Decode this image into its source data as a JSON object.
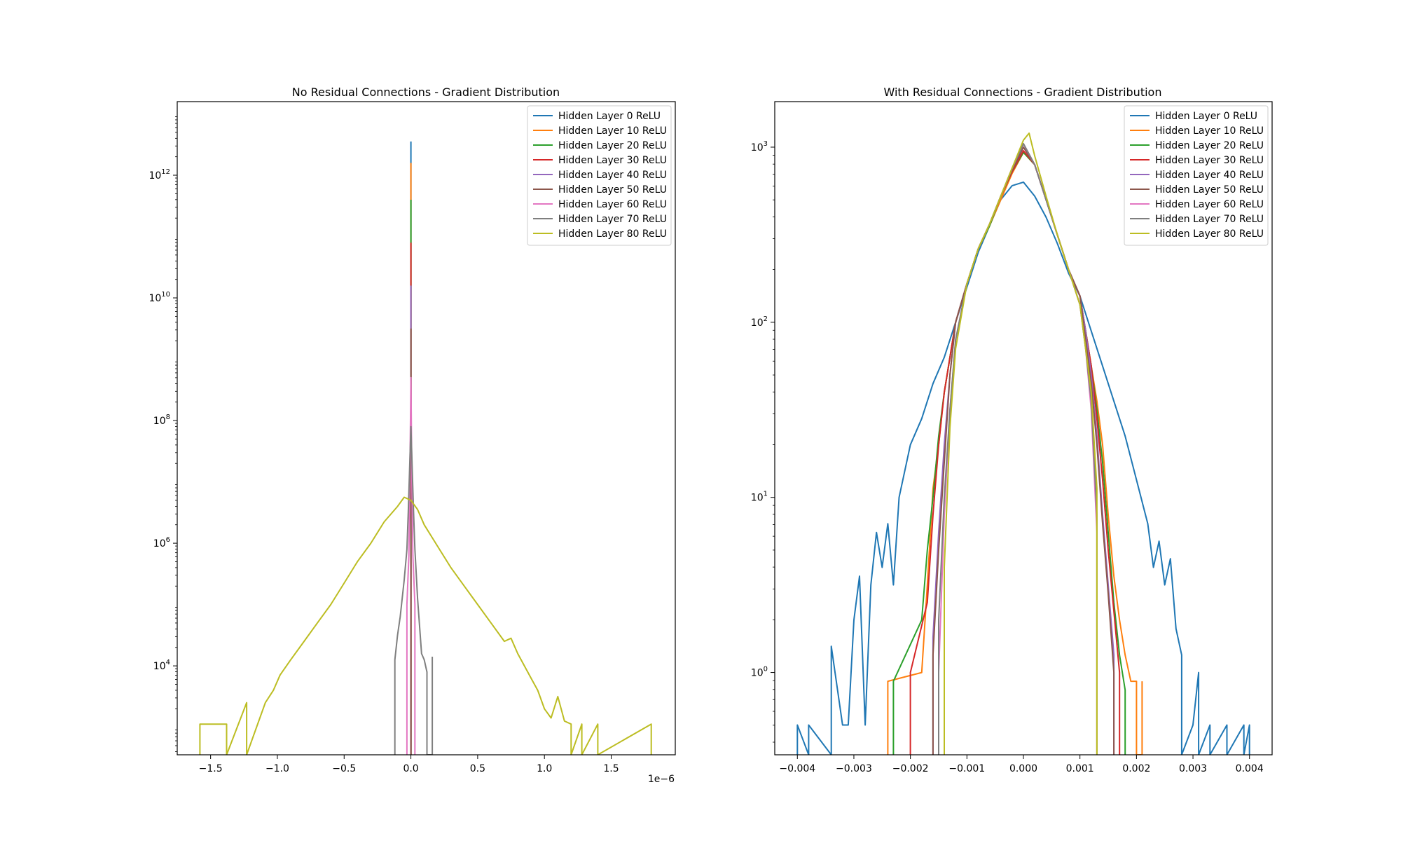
{
  "chart_data": [
    {
      "type": "line",
      "title": "No Residual Connections - Gradient Distribution",
      "xlabel": "",
      "ylabel": "",
      "x_offset_label": "1e−6",
      "xlim": [
        -1.75,
        1.98
      ],
      "xticks": [
        -1.5,
        -1.0,
        -0.5,
        0.0,
        0.5,
        1.0,
        1.5
      ],
      "xtick_labels": [
        "−1.5",
        "−1.0",
        "−0.5",
        "0.0",
        "0.5",
        "1.0",
        "1.5"
      ],
      "yscale": "log",
      "ylim_exp": [
        2.55,
        13.2
      ],
      "yticks_exp": [
        4,
        6,
        8,
        10,
        12
      ],
      "ytick_labels": [
        {
          "base": "10",
          "exp": "4"
        },
        {
          "base": "10",
          "exp": "6"
        },
        {
          "base": "10",
          "exp": "8"
        },
        {
          "base": "10",
          "exp": "10"
        },
        {
          "base": "10",
          "exp": "12"
        }
      ],
      "grid": false,
      "legend_position": "top-right",
      "series": [
        {
          "name": "Hidden Layer 0 ReLU",
          "color": "#1f77b4",
          "x": [
            0,
            0
          ],
          "y_exp": [
            2.55,
            12.55
          ]
        },
        {
          "name": "Hidden Layer 10 ReLU",
          "color": "#ff7f0e",
          "x": [
            0,
            0
          ],
          "y_exp": [
            2.55,
            12.2
          ]
        },
        {
          "name": "Hidden Layer 20 ReLU",
          "color": "#2ca02c",
          "x": [
            0,
            0
          ],
          "y_exp": [
            2.55,
            11.6
          ]
        },
        {
          "name": "Hidden Layer 30 ReLU",
          "color": "#d62728",
          "x": [
            0,
            0
          ],
          "y_exp": [
            2.55,
            10.9
          ]
        },
        {
          "name": "Hidden Layer 40 ReLU",
          "color": "#9467bd",
          "x": [
            0,
            0
          ],
          "y_exp": [
            2.55,
            10.2
          ]
        },
        {
          "name": "Hidden Layer 50 ReLU",
          "color": "#8c564b",
          "x": [
            0,
            0
          ],
          "y_exp": [
            2.55,
            9.5
          ]
        },
        {
          "name": "Hidden Layer 60 ReLU",
          "color": "#e377c2",
          "x": [
            -0.03,
            -0.03,
            -0.015,
            -0.01,
            -0.005,
            0,
            0.005,
            0.01,
            0.015,
            0.03,
            0.03
          ],
          "y_exp": [
            2.55,
            5.0,
            5.8,
            6.6,
            7.6,
            8.7,
            7.6,
            6.6,
            5.8,
            5.0,
            2.55
          ]
        },
        {
          "name": "Hidden Layer 70 ReLU",
          "color": "#7f7f7f",
          "x": [
            -0.12,
            -0.12,
            -0.1,
            -0.08,
            -0.05,
            -0.03,
            -0.02,
            -0.01,
            0,
            0.01,
            0.02,
            0.03,
            0.05,
            0.08,
            0.1,
            0.12,
            0.12,
            0.16,
            0.16
          ],
          "y_exp": [
            2.55,
            4.1,
            4.5,
            4.8,
            5.4,
            5.9,
            6.5,
            7.2,
            7.9,
            7.2,
            6.5,
            5.9,
            5.1,
            4.2,
            4.1,
            3.9,
            2.55,
            2.55,
            4.15
          ]
        },
        {
          "name": "Hidden Layer 80 ReLU",
          "color": "#bcbd22",
          "x": [
            -1.58,
            -1.58,
            -1.38,
            -1.38,
            -1.23,
            -1.23,
            -1.09,
            -1.03,
            -0.98,
            -0.9,
            -0.8,
            -0.7,
            -0.6,
            -0.5,
            -0.4,
            -0.3,
            -0.2,
            -0.1,
            -0.05,
            0,
            0.05,
            0.1,
            0.2,
            0.3,
            0.4,
            0.5,
            0.6,
            0.7,
            0.75,
            0.8,
            0.85,
            0.9,
            0.95,
            1.0,
            1.05,
            1.1,
            1.15,
            1.2,
            1.2,
            1.28,
            1.28,
            1.4,
            1.4,
            1.8,
            1.8
          ],
          "y_exp": [
            2.55,
            3.05,
            3.05,
            2.55,
            3.4,
            2.55,
            3.4,
            3.6,
            3.85,
            4.1,
            4.4,
            4.7,
            5.0,
            5.35,
            5.7,
            6.0,
            6.35,
            6.6,
            6.75,
            6.7,
            6.55,
            6.3,
            5.95,
            5.6,
            5.3,
            5.0,
            4.7,
            4.4,
            4.45,
            4.2,
            4.0,
            3.8,
            3.6,
            3.3,
            3.15,
            3.5,
            3.1,
            3.05,
            2.55,
            3.05,
            2.55,
            3.05,
            2.55,
            3.05,
            2.55
          ]
        }
      ]
    },
    {
      "type": "line",
      "title": "With Residual Connections - Gradient Distribution",
      "xlabel": "",
      "ylabel": "",
      "xlim": [
        -0.0044,
        0.0044
      ],
      "xticks": [
        -0.004,
        -0.003,
        -0.002,
        -0.001,
        0.0,
        0.001,
        0.002,
        0.003,
        0.004
      ],
      "xtick_labels": [
        "−0.004",
        "−0.003",
        "−0.002",
        "−0.001",
        "0.000",
        "0.001",
        "0.002",
        "0.003",
        "0.004"
      ],
      "yscale": "log",
      "ylim_exp": [
        -0.47,
        3.26
      ],
      "yticks_exp": [
        0,
        1,
        2,
        3
      ],
      "ytick_labels": [
        {
          "base": "10",
          "exp": "0"
        },
        {
          "base": "10",
          "exp": "1"
        },
        {
          "base": "10",
          "exp": "2"
        },
        {
          "base": "10",
          "exp": "3"
        }
      ],
      "grid": false,
      "legend_position": "top-right",
      "series": [
        {
          "name": "Hidden Layer 0 ReLU",
          "color": "#1f77b4",
          "x": [
            -0.004,
            -0.004,
            -0.0038,
            -0.0038,
            -0.0034,
            -0.0034,
            -0.0032,
            -0.0031,
            -0.003,
            -0.0029,
            -0.0028,
            -0.0027,
            -0.0026,
            -0.0025,
            -0.0024,
            -0.0023,
            -0.0022,
            -0.002,
            -0.0018,
            -0.0016,
            -0.0014,
            -0.0012,
            -0.001,
            -0.0008,
            -0.0006,
            -0.0004,
            -0.0002,
            0,
            0.0002,
            0.0004,
            0.0006,
            0.0008,
            0.001,
            0.0012,
            0.0014,
            0.0016,
            0.0018,
            0.002,
            0.0022,
            0.0023,
            0.0024,
            0.0025,
            0.0026,
            0.0027,
            0.0028,
            0.0028,
            0.003,
            0.0031,
            0.0031,
            0.0033,
            0.0033,
            0.0036,
            0.0036,
            0.0039,
            0.0039,
            0.004,
            0.004
          ],
          "y_exp": [
            -0.47,
            -0.3,
            -0.47,
            -0.3,
            -0.47,
            0.15,
            -0.3,
            -0.3,
            0.3,
            0.55,
            -0.3,
            0.5,
            0.8,
            0.6,
            0.85,
            0.5,
            1.0,
            1.3,
            1.45,
            1.65,
            1.8,
            2.0,
            2.2,
            2.4,
            2.55,
            2.7,
            2.78,
            2.8,
            2.72,
            2.6,
            2.45,
            2.28,
            2.15,
            1.95,
            1.75,
            1.55,
            1.35,
            1.1,
            0.85,
            0.6,
            0.75,
            0.5,
            0.65,
            0.25,
            0.1,
            -0.47,
            -0.3,
            0.0,
            -0.47,
            -0.3,
            -0.47,
            -0.3,
            -0.47,
            -0.3,
            -0.47,
            -0.3,
            -0.47
          ]
        },
        {
          "name": "Hidden Layer 10 ReLU",
          "color": "#ff7f0e",
          "x": [
            -0.0024,
            -0.0024,
            -0.0018,
            -0.0017,
            -0.0016,
            -0.0015,
            -0.0014,
            -0.0013,
            -0.0012,
            -0.001,
            -0.0008,
            -0.0006,
            -0.0004,
            -0.0002,
            0,
            0.0002,
            0.0004,
            0.0006,
            0.0008,
            0.001,
            0.0011,
            0.0012,
            0.0013,
            0.0014,
            0.0015,
            0.0016,
            0.0017,
            0.0018,
            0.0019,
            0.002,
            0.002,
            0.0021,
            0.0021
          ],
          "y_exp": [
            -0.47,
            -0.05,
            0.0,
            0.5,
            1.05,
            1.3,
            1.6,
            1.8,
            2.0,
            2.22,
            2.42,
            2.55,
            2.7,
            2.85,
            2.97,
            2.9,
            2.7,
            2.5,
            2.3,
            2.15,
            1.95,
            1.75,
            1.55,
            1.3,
            0.9,
            0.55,
            0.3,
            0.1,
            -0.05,
            -0.05,
            -0.47,
            -0.47,
            -0.05
          ]
        },
        {
          "name": "Hidden Layer 20 ReLU",
          "color": "#2ca02c",
          "x": [
            -0.0023,
            -0.0023,
            -0.0018,
            -0.0017,
            -0.0016,
            -0.0015,
            -0.0014,
            -0.0013,
            -0.0012,
            -0.001,
            -0.0008,
            -0.0006,
            -0.0004,
            -0.0002,
            0,
            0.0002,
            0.0004,
            0.0006,
            0.0008,
            0.001,
            0.0011,
            0.0012,
            0.0013,
            0.0014,
            0.0015,
            0.0016,
            0.0017,
            0.0018,
            0.0018
          ],
          "y_exp": [
            -0.47,
            -0.05,
            0.3,
            0.7,
            1.0,
            1.35,
            1.6,
            1.8,
            2.0,
            2.22,
            2.42,
            2.55,
            2.72,
            2.86,
            2.97,
            2.9,
            2.7,
            2.5,
            2.3,
            2.15,
            1.95,
            1.75,
            1.5,
            1.2,
            0.8,
            0.4,
            0.1,
            -0.1,
            -0.47
          ]
        },
        {
          "name": "Hidden Layer 30 ReLU",
          "color": "#d62728",
          "x": [
            -0.002,
            -0.002,
            -0.0017,
            -0.0016,
            -0.0015,
            -0.0014,
            -0.0013,
            -0.0012,
            -0.001,
            -0.0008,
            -0.0006,
            -0.0004,
            -0.0002,
            0,
            0.0002,
            0.0004,
            0.0006,
            0.0008,
            0.001,
            0.0011,
            0.0012,
            0.0013,
            0.0014,
            0.0015,
            0.0016,
            0.0017,
            0.0017
          ],
          "y_exp": [
            -0.47,
            0.0,
            0.4,
            0.9,
            1.3,
            1.6,
            1.8,
            2.0,
            2.22,
            2.42,
            2.56,
            2.72,
            2.86,
            2.98,
            2.9,
            2.7,
            2.5,
            2.3,
            2.15,
            1.95,
            1.75,
            1.45,
            1.1,
            0.7,
            0.35,
            0.0,
            -0.47
          ]
        },
        {
          "name": "Hidden Layer 40 ReLU",
          "color": "#9467bd",
          "x": [
            -0.0016,
            -0.0016,
            -0.0015,
            -0.0014,
            -0.0013,
            -0.0012,
            -0.001,
            -0.0008,
            -0.0006,
            -0.0004,
            -0.0002,
            0,
            0.0002,
            0.0004,
            0.0006,
            0.0008,
            0.001,
            0.0011,
            0.0012,
            0.0013,
            0.0014,
            0.0015,
            0.0016,
            0.0016
          ],
          "y_exp": [
            -0.47,
            0.2,
            0.8,
            1.3,
            1.7,
            2.0,
            2.22,
            2.42,
            2.56,
            2.72,
            2.87,
            3.0,
            2.9,
            2.7,
            2.5,
            2.3,
            2.15,
            1.95,
            1.7,
            1.35,
            0.9,
            0.5,
            0.1,
            -0.47
          ]
        },
        {
          "name": "Hidden Layer 50 ReLU",
          "color": "#8c564b",
          "x": [
            -0.0016,
            -0.0016,
            -0.0015,
            -0.0014,
            -0.0013,
            -0.0012,
            -0.001,
            -0.0008,
            -0.0006,
            -0.0004,
            -0.0002,
            0,
            0.0002,
            0.0004,
            0.0006,
            0.0008,
            0.001,
            0.0011,
            0.0012,
            0.0013,
            0.0014,
            0.0015,
            0.0016,
            0.0016
          ],
          "y_exp": [
            -0.47,
            0.1,
            0.7,
            1.2,
            1.7,
            2.0,
            2.22,
            2.42,
            2.56,
            2.72,
            2.87,
            3.0,
            2.9,
            2.7,
            2.5,
            2.3,
            2.15,
            1.9,
            1.65,
            1.3,
            0.85,
            0.45,
            0.0,
            -0.47
          ]
        },
        {
          "name": "Hidden Layer 60 ReLU",
          "color": "#e377c2",
          "x": [
            -0.0015,
            -0.0015,
            -0.0014,
            -0.0013,
            -0.0012,
            -0.001,
            -0.0008,
            -0.0006,
            -0.0004,
            -0.0002,
            0,
            0.0002,
            0.0004,
            0.0006,
            0.0008,
            0.001,
            0.0011,
            0.0012,
            0.0013,
            0.0013
          ],
          "y_exp": [
            -0.47,
            0.0,
            0.9,
            1.5,
            1.9,
            2.22,
            2.42,
            2.56,
            2.72,
            2.88,
            3.02,
            2.9,
            2.7,
            2.5,
            2.3,
            2.1,
            1.85,
            1.5,
            0.8,
            -0.47
          ]
        },
        {
          "name": "Hidden Layer 70 ReLU",
          "color": "#7f7f7f",
          "x": [
            -0.0015,
            -0.0015,
            -0.0014,
            -0.0013,
            -0.0012,
            -0.001,
            -0.0008,
            -0.0006,
            -0.0004,
            -0.0002,
            0,
            0.0002,
            0.0004,
            0.0006,
            0.0008,
            0.001,
            0.0011,
            0.0012,
            0.0013,
            0.0013
          ],
          "y_exp": [
            -0.47,
            0.3,
            1.0,
            1.5,
            1.9,
            2.22,
            2.42,
            2.56,
            2.72,
            2.88,
            3.02,
            2.9,
            2.7,
            2.5,
            2.3,
            2.1,
            1.85,
            1.55,
            0.9,
            -0.47
          ]
        },
        {
          "name": "Hidden Layer 80 ReLU",
          "color": "#bcbd22",
          "x": [
            -0.0014,
            -0.0014,
            -0.0013,
            -0.0012,
            -0.001,
            -0.0008,
            -0.0006,
            -0.0004,
            -0.0002,
            0,
            0.0001,
            0.0002,
            0.0004,
            0.0006,
            0.0008,
            0.001,
            0.0011,
            0.0012,
            0.0013,
            0.0013
          ],
          "y_exp": [
            -0.47,
            0.6,
            1.4,
            1.85,
            2.22,
            2.42,
            2.56,
            2.72,
            2.88,
            3.04,
            3.08,
            2.95,
            2.72,
            2.5,
            2.3,
            2.1,
            1.85,
            1.6,
            1.05,
            -0.47
          ]
        }
      ]
    }
  ]
}
